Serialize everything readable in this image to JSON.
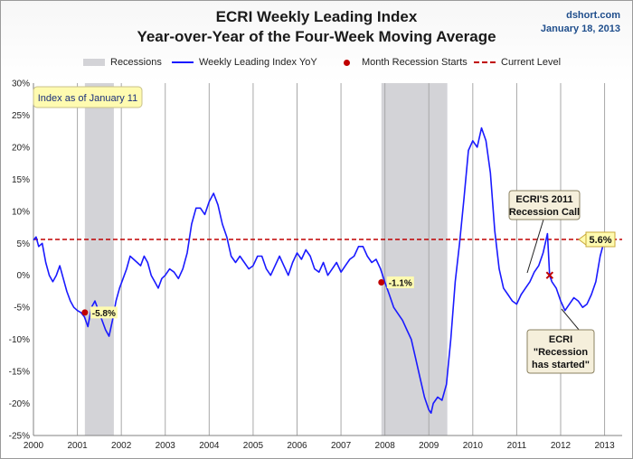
{
  "header": {
    "title_line1": "ECRI Weekly Leading Index",
    "title_line2": "Year-over-Year of the Four-Week Moving Average",
    "source": "dshort.com",
    "date": "January 18, 2013"
  },
  "legend": {
    "recessions": "Recessions",
    "series": "Weekly Leading Index YoY",
    "recession_starts": "Month Recession Starts",
    "current_level": "Current Level"
  },
  "colors": {
    "series": "#1a1aff",
    "recession_band": "#d3d3d7",
    "current_level": "#c00000",
    "marker": "#c00000",
    "callout_yellow": "#fffbb0",
    "callout_beige": "#f5efdb"
  },
  "annotations": {
    "index_date": "Index as of January 11",
    "current_value_label": "5.6%",
    "ecri_call_line1": "ECRI'S 2011",
    "ecri_call_line2": "Recession Call",
    "ecri_started_line1": "ECRI",
    "ecri_started_line2": "\"Recession",
    "ecri_started_line3": "has started\"",
    "marker_labels": [
      "-5.8%",
      "-1.1%"
    ]
  },
  "chart_data": {
    "type": "line",
    "title": "ECRI Weekly Leading Index Year-over-Year of the Four-Week Moving Average",
    "xlabel": "",
    "ylabel": "",
    "xlim": [
      2000,
      2013.4
    ],
    "ylim": [
      -25,
      30
    ],
    "x_ticks": [
      "2000",
      "2001",
      "2002",
      "2003",
      "2004",
      "2005",
      "2006",
      "2007",
      "2008",
      "2009",
      "2010",
      "2011",
      "2012",
      "2013"
    ],
    "y_ticks": [
      "30%",
      "25%",
      "20%",
      "15%",
      "10%",
      "5%",
      "0%",
      "-5%",
      "-10%",
      "-15%",
      "-20%",
      "-25%"
    ],
    "y_tick_values": [
      30,
      25,
      20,
      15,
      10,
      5,
      0,
      -5,
      -10,
      -15,
      -20,
      -25
    ],
    "grid": "vertical year lines",
    "legend_position": "top",
    "recessions": [
      [
        2001.17,
        2001.83
      ],
      [
        2007.92,
        2009.42
      ]
    ],
    "current_level": 5.6,
    "recession_start_markers": [
      {
        "x": 2001.17,
        "y": -5.8,
        "label": "-5.8%"
      },
      {
        "x": 2007.92,
        "y": -1.1,
        "label": "-1.1%"
      }
    ],
    "ecri_call_marker": {
      "x": 2011.75,
      "y": 0
    },
    "series": [
      {
        "name": "Weekly Leading Index YoY",
        "x": [
          2000.0,
          2000.06,
          2000.12,
          2000.2,
          2000.28,
          2000.36,
          2000.44,
          2000.52,
          2000.6,
          2000.68,
          2000.76,
          2000.84,
          2000.92,
          2001.0,
          2001.08,
          2001.16,
          2001.24,
          2001.32,
          2001.4,
          2001.48,
          2001.56,
          2001.64,
          2001.72,
          2001.8,
          2001.88,
          2001.96,
          2002.04,
          2002.12,
          2002.2,
          2002.28,
          2002.36,
          2002.44,
          2002.52,
          2002.6,
          2002.68,
          2002.76,
          2002.84,
          2002.92,
          2003.0,
          2003.1,
          2003.2,
          2003.3,
          2003.4,
          2003.5,
          2003.6,
          2003.7,
          2003.8,
          2003.9,
          2004.0,
          2004.1,
          2004.2,
          2004.3,
          2004.4,
          2004.5,
          2004.6,
          2004.7,
          2004.8,
          2004.9,
          2005.0,
          2005.1,
          2005.2,
          2005.3,
          2005.4,
          2005.5,
          2005.6,
          2005.7,
          2005.8,
          2005.9,
          2006.0,
          2006.1,
          2006.2,
          2006.3,
          2006.4,
          2006.5,
          2006.6,
          2006.7,
          2006.8,
          2006.9,
          2007.0,
          2007.1,
          2007.2,
          2007.3,
          2007.4,
          2007.5,
          2007.6,
          2007.7,
          2007.8,
          2007.9,
          2008.0,
          2008.1,
          2008.2,
          2008.3,
          2008.4,
          2008.5,
          2008.6,
          2008.7,
          2008.8,
          2008.9,
          2009.0,
          2009.05,
          2009.1,
          2009.2,
          2009.3,
          2009.4,
          2009.5,
          2009.6,
          2009.7,
          2009.8,
          2009.9,
          2010.0,
          2010.1,
          2010.2,
          2010.3,
          2010.4,
          2010.5,
          2010.6,
          2010.7,
          2010.8,
          2010.9,
          2011.0,
          2011.1,
          2011.2,
          2011.3,
          2011.4,
          2011.5,
          2011.6,
          2011.7,
          2011.75,
          2011.8,
          2011.9,
          2012.0,
          2012.1,
          2012.2,
          2012.3,
          2012.4,
          2012.5,
          2012.6,
          2012.7,
          2012.8,
          2012.9,
          2013.0
        ],
        "values": [
          5.5,
          6.0,
          4.5,
          5.0,
          2.0,
          0.0,
          -1.0,
          0.0,
          1.5,
          -0.5,
          -2.5,
          -4.0,
          -5.0,
          -5.5,
          -5.8,
          -6.5,
          -8.0,
          -5.0,
          -4.0,
          -5.5,
          -7.0,
          -8.5,
          -9.5,
          -7.0,
          -4.0,
          -2.0,
          -0.5,
          1.0,
          3.0,
          2.5,
          2.0,
          1.5,
          3.0,
          2.0,
          0.0,
          -1.0,
          -2.0,
          -0.5,
          0.0,
          1.0,
          0.5,
          -0.5,
          1.0,
          3.5,
          8.0,
          10.5,
          10.5,
          9.5,
          11.5,
          12.8,
          11.0,
          8.0,
          6.0,
          3.0,
          2.0,
          3.0,
          2.0,
          1.0,
          1.5,
          3.0,
          3.0,
          1.0,
          0.0,
          1.5,
          3.0,
          1.5,
          0.0,
          2.0,
          3.5,
          2.5,
          4.0,
          3.0,
          1.0,
          0.5,
          2.0,
          0.0,
          1.0,
          2.0,
          0.5,
          1.5,
          2.5,
          3.0,
          4.5,
          4.5,
          3.0,
          2.0,
          2.5,
          1.0,
          -1.1,
          -3.0,
          -5.0,
          -6.0,
          -7.0,
          -8.5,
          -10.0,
          -13.0,
          -16.0,
          -19.0,
          -21.0,
          -21.5,
          -20.0,
          -19.0,
          -19.5,
          -17.0,
          -10.0,
          -1.0,
          5.0,
          12.0,
          19.5,
          21.0,
          20.0,
          23.0,
          21.0,
          16.0,
          7.0,
          1.0,
          -2.0,
          -3.0,
          -4.0,
          -4.5,
          -3.0,
          -2.0,
          -1.0,
          0.5,
          1.5,
          3.5,
          6.5,
          0.0,
          -1.0,
          -2.0,
          -4.0,
          -5.5,
          -4.5,
          -3.5,
          -4.0,
          -5.0,
          -4.5,
          -3.0,
          -1.0,
          3.0,
          5.6
        ]
      }
    ]
  }
}
